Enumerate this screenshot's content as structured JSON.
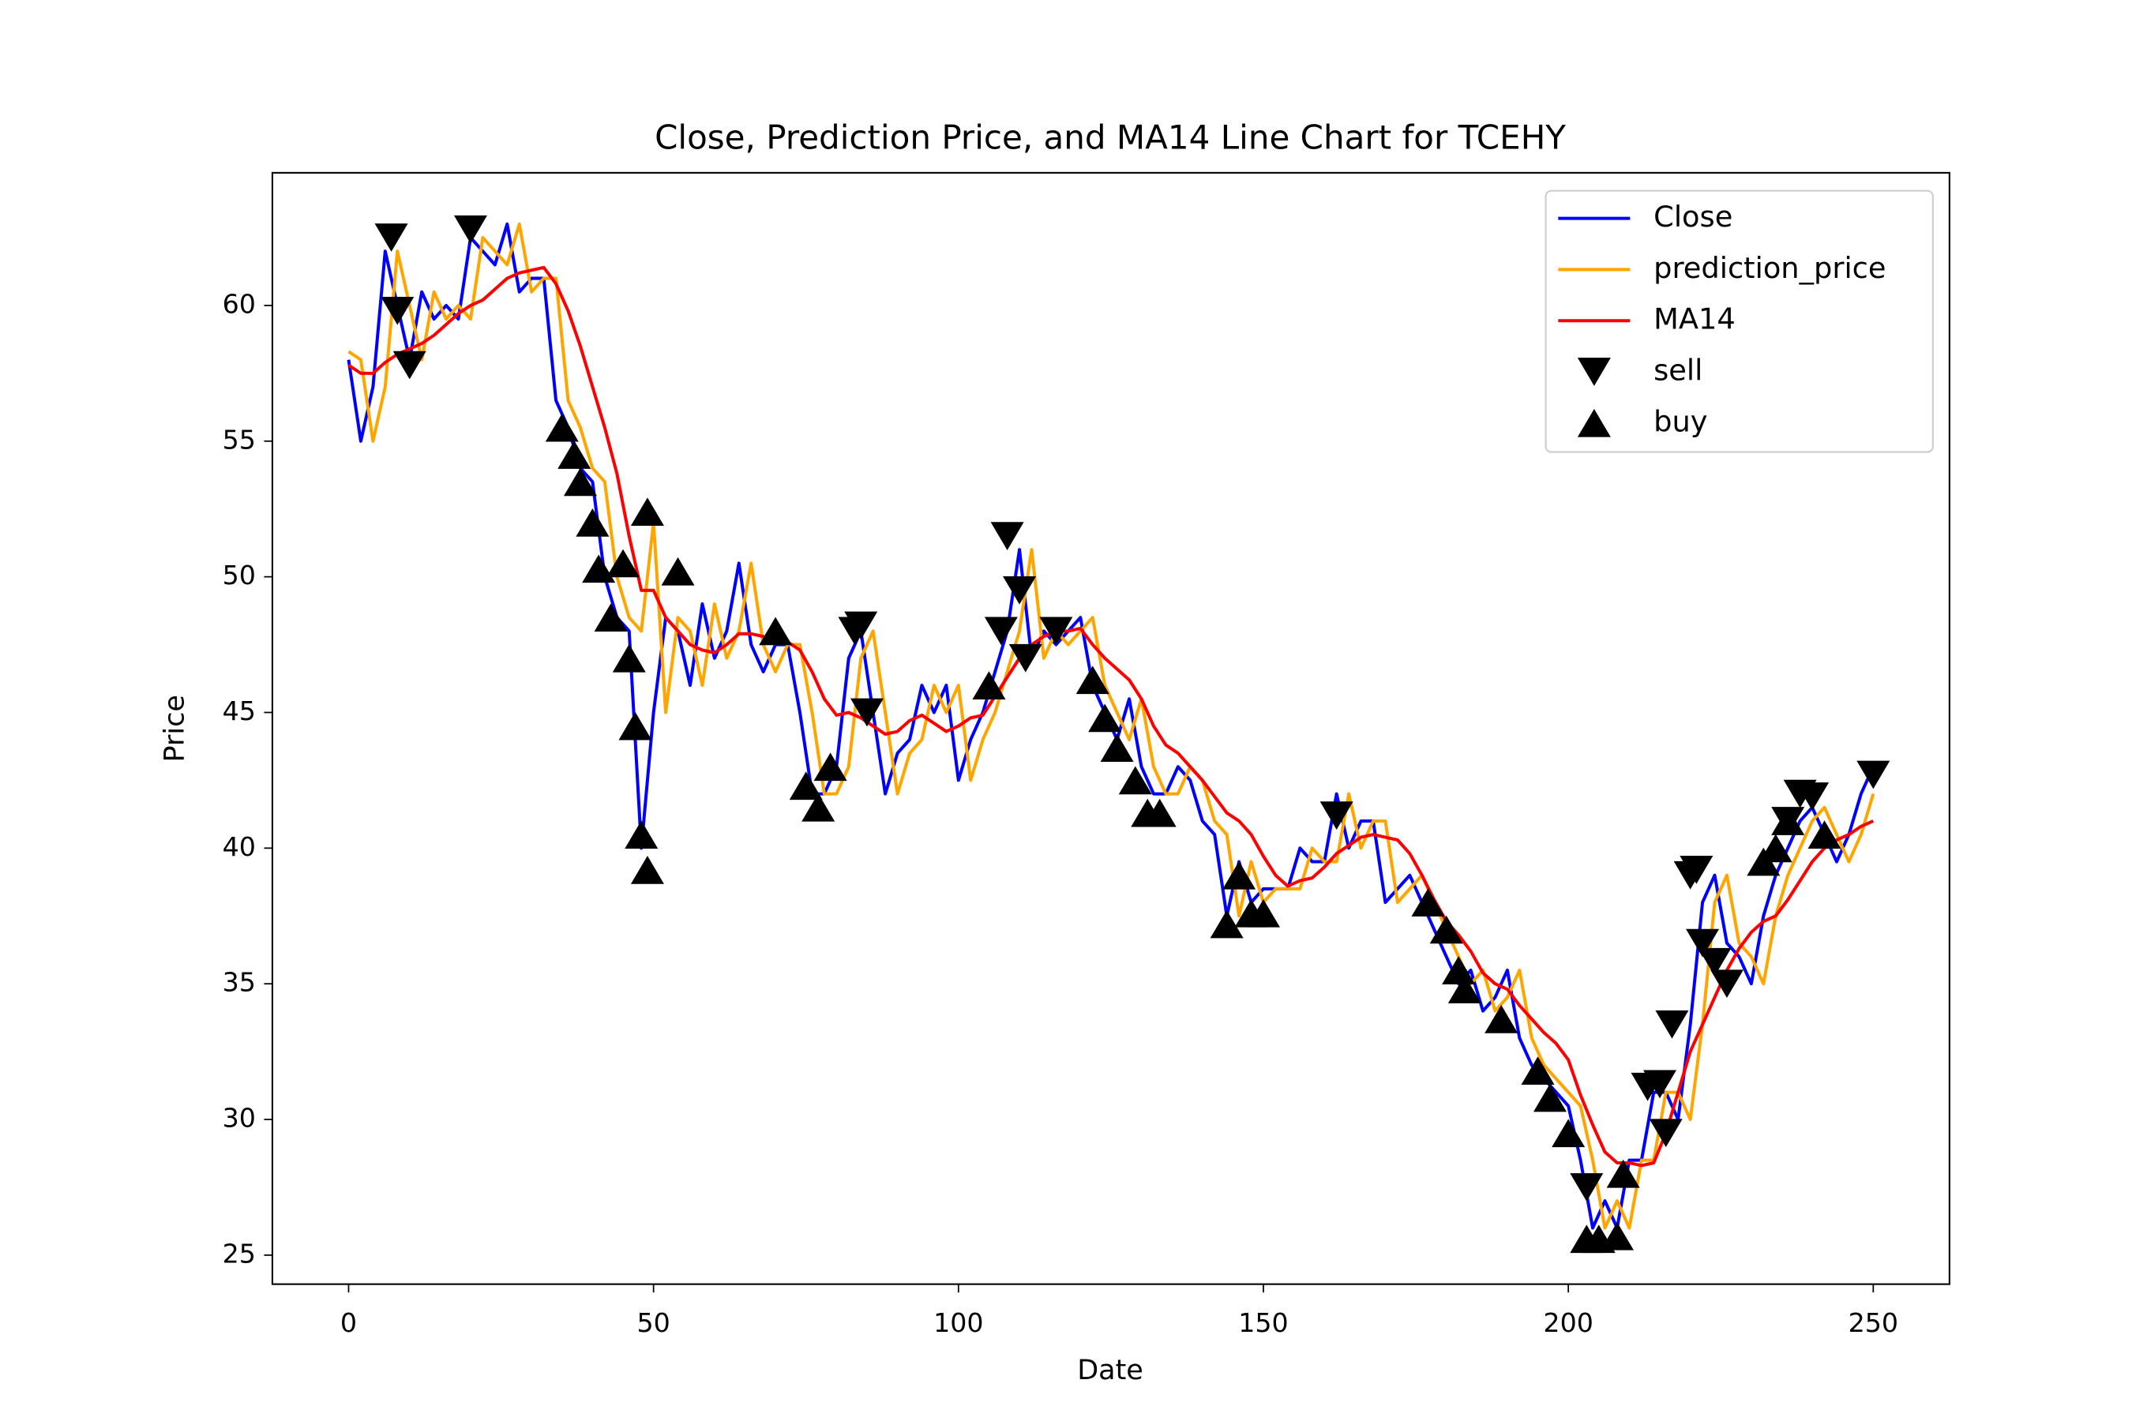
{
  "chart_data": {
    "type": "line",
    "title": "Close, Prediction Price, and MA14 Line Chart for TCEHY",
    "xlabel": "Date",
    "ylabel": "Price",
    "x": [
      0,
      2,
      4,
      6,
      8,
      10,
      12,
      14,
      16,
      18,
      20,
      22,
      24,
      26,
      28,
      30,
      32,
      34,
      36,
      38,
      40,
      42,
      44,
      46,
      48,
      50,
      52,
      54,
      56,
      58,
      60,
      62,
      64,
      66,
      68,
      70,
      72,
      74,
      76,
      78,
      80,
      82,
      84,
      86,
      88,
      90,
      92,
      94,
      96,
      98,
      100,
      102,
      104,
      106,
      108,
      110,
      112,
      114,
      116,
      118,
      120,
      122,
      124,
      126,
      128,
      130,
      132,
      134,
      136,
      138,
      140,
      142,
      144,
      146,
      148,
      150,
      152,
      154,
      156,
      158,
      160,
      162,
      164,
      166,
      168,
      170,
      172,
      174,
      176,
      178,
      180,
      182,
      184,
      186,
      188,
      190,
      192,
      194,
      196,
      198,
      200,
      202,
      204,
      206,
      208,
      210,
      212,
      214,
      216,
      218,
      220,
      222,
      224,
      226,
      228,
      230,
      232,
      234,
      236,
      238,
      240,
      242,
      244,
      246,
      248,
      250
    ],
    "series": [
      {
        "name": "Close",
        "color": "#0000ff",
        "values": [
          58,
          55,
          57,
          62,
          60,
          58,
          60.5,
          59.5,
          60,
          59.5,
          62.5,
          62,
          61.5,
          63,
          60.5,
          61,
          61,
          56.5,
          55.5,
          54,
          53.5,
          50,
          48.5,
          48,
          40,
          45,
          48.5,
          48,
          46,
          49,
          47,
          48,
          50.5,
          47.5,
          46.5,
          47.5,
          47.5,
          45,
          42,
          42,
          43,
          47,
          48,
          45,
          42,
          43.5,
          44,
          46,
          45,
          46,
          42.5,
          44,
          45,
          46.5,
          48,
          51,
          47,
          48,
          47.5,
          48,
          48.5,
          46,
          45,
          44,
          45.5,
          43,
          42,
          42,
          43,
          42.5,
          41,
          40.5,
          37.5,
          39.5,
          38,
          38.5,
          38.5,
          38.5,
          40,
          39.5,
          39.5,
          42,
          40,
          41,
          41,
          38,
          38.5,
          39,
          38,
          37,
          36,
          35,
          35.5,
          34,
          34.5,
          35.5,
          33,
          32,
          31.5,
          31,
          30.5,
          28.5,
          26,
          27,
          26,
          28.5,
          28.5,
          31,
          31,
          30,
          33.5,
          38,
          39,
          36.5,
          36,
          35,
          37.5,
          39,
          40,
          41,
          41.5,
          40.5,
          39.5,
          40.5,
          42,
          43
        ]
      },
      {
        "name": "prediction_price",
        "color": "#ffa500",
        "values": [
          58.3,
          58,
          55,
          57,
          62,
          60,
          58,
          60.5,
          59.5,
          60,
          59.5,
          62.5,
          62,
          61.5,
          63,
          60.5,
          61,
          61,
          56.5,
          55.5,
          54,
          53.5,
          50,
          48.5,
          48,
          52,
          45,
          48.5,
          48,
          46,
          49,
          47,
          48,
          50.5,
          47.5,
          46.5,
          47.5,
          47.5,
          45,
          42,
          42,
          43,
          47,
          48,
          45,
          42,
          43.5,
          44,
          46,
          45,
          46,
          42.5,
          44,
          45,
          46.5,
          48,
          51,
          47,
          48,
          47.5,
          48,
          48.5,
          46,
          45,
          44,
          45.5,
          43,
          42,
          42,
          43,
          42.5,
          41,
          40.5,
          37.5,
          39.5,
          38,
          38.5,
          38.5,
          38.5,
          40,
          39.5,
          39.5,
          42,
          40,
          41,
          41,
          38,
          38.5,
          39,
          38,
          37,
          36,
          35,
          35.5,
          34,
          34.5,
          35.5,
          33,
          32,
          31.5,
          31,
          30.5,
          28.5,
          26,
          27,
          26,
          28.5,
          28.5,
          31,
          31,
          30,
          33.5,
          38,
          39,
          36.5,
          36,
          35,
          37.5,
          39,
          40,
          41,
          41.5,
          40.5,
          39.5,
          40.5,
          42
        ]
      },
      {
        "name": "MA14",
        "color": "#ff0000",
        "values": [
          57.8,
          57.5,
          57.5,
          57.9,
          58.2,
          58.4,
          58.6,
          58.9,
          59.3,
          59.7,
          60,
          60.2,
          60.6,
          61,
          61.2,
          61.3,
          61.4,
          60.8,
          59.8,
          58.5,
          57,
          55.5,
          53.8,
          51.5,
          49.5,
          49.5,
          48.5,
          48,
          47.5,
          47.3,
          47.2,
          47.5,
          47.9,
          47.9,
          47.8,
          47.6,
          47.6,
          47.3,
          46.5,
          45.5,
          44.9,
          45,
          44.8,
          44.5,
          44.2,
          44.3,
          44.7,
          44.9,
          44.6,
          44.3,
          44.5,
          44.8,
          44.9,
          45.6,
          46.3,
          47,
          47.5,
          47.8,
          48,
          48,
          48.1,
          47.5,
          47,
          46.6,
          46.2,
          45.5,
          44.5,
          43.8,
          43.5,
          43,
          42.5,
          41.9,
          41.3,
          41,
          40.5,
          39.7,
          39,
          38.6,
          38.8,
          38.9,
          39.3,
          39.8,
          40.1,
          40.4,
          40.5,
          40.4,
          40.3,
          39.8,
          39,
          38.1,
          37.3,
          36.8,
          36.2,
          35.4,
          35,
          34.8,
          34.2,
          33.7,
          33.2,
          32.8,
          32.2,
          30.9,
          29.8,
          28.8,
          28.4,
          28.4,
          28.3,
          28.4,
          29.5,
          31,
          32.5,
          33.5,
          34.5,
          35.5,
          36.3,
          36.9,
          37.3,
          37.5,
          38.1,
          38.8,
          39.5,
          40,
          40.3,
          40.5,
          40.8,
          41
        ]
      }
    ],
    "markers": [
      {
        "name": "sell",
        "marker": "v",
        "color": "#000000",
        "x": [
          7,
          8,
          10,
          20,
          83,
          84,
          85,
          107,
          108,
          110,
          111,
          116,
          162,
          203,
          213,
          215,
          216,
          217,
          220,
          221,
          222,
          224,
          226,
          236,
          238,
          240,
          250
        ],
        "y": [
          62.5,
          59.8,
          57.8,
          62.8,
          48,
          48.2,
          45,
          48,
          51.5,
          49.5,
          47,
          48,
          41.2,
          27.5,
          31.2,
          31.3,
          29.5,
          33.5,
          39,
          39.2,
          36.5,
          35.8,
          35,
          41,
          42,
          41.9,
          42.7
        ]
      },
      {
        "name": "buy",
        "marker": "^",
        "color": "#000000",
        "x": [
          35,
          37,
          38,
          40,
          41,
          43,
          45,
          46,
          47,
          48,
          49,
          49,
          54,
          70,
          75,
          77,
          79,
          105,
          122,
          124,
          126,
          129,
          131,
          133,
          144,
          146,
          148,
          150,
          177,
          180,
          182,
          183,
          189,
          195,
          197,
          200,
          203,
          205,
          208,
          209,
          232,
          234,
          236,
          242
        ],
        "y": [
          55.5,
          54.5,
          53.5,
          52,
          50.3,
          48.5,
          50.5,
          47,
          44.5,
          40.5,
          39.2,
          52.4,
          50.2,
          48,
          42.3,
          41.5,
          43,
          46,
          46.2,
          44.8,
          43.7,
          42.5,
          41.3,
          41.3,
          37.2,
          39,
          37.6,
          37.6,
          38,
          37,
          35.5,
          34.8,
          33.7,
          31.8,
          30.8,
          29.5,
          25.6,
          25.6,
          25.7,
          28,
          39.5,
          40,
          41,
          40.5
        ]
      }
    ],
    "xlim": [
      -12.5,
      262.5
    ],
    "ylim": [
      23.93,
      64.89
    ],
    "xticks": [
      0,
      50,
      100,
      150,
      200,
      250
    ],
    "yticks": [
      25,
      30,
      35,
      40,
      45,
      50,
      55,
      60
    ],
    "legend": "upper right"
  }
}
